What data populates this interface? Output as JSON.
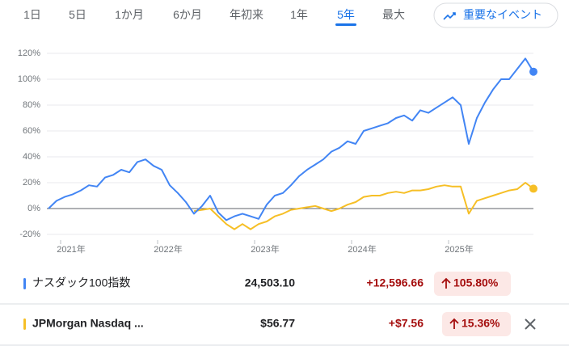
{
  "tabs": [
    "1日",
    "5日",
    "1か月",
    "6か月",
    "年初来",
    "1年",
    "5年",
    "最大"
  ],
  "selected_tab": 6,
  "events_button": "重要なイベント",
  "chart_data": {
    "type": "line",
    "x": [
      2020.875,
      2020.958,
      2021.042,
      2021.125,
      2021.208,
      2021.292,
      2021.375,
      2021.458,
      2021.542,
      2021.625,
      2021.708,
      2021.792,
      2021.875,
      2021.958,
      2022.042,
      2022.125,
      2022.208,
      2022.292,
      2022.375,
      2022.458,
      2022.542,
      2022.625,
      2022.708,
      2022.792,
      2022.875,
      2022.958,
      2023.042,
      2023.125,
      2023.208,
      2023.292,
      2023.375,
      2023.458,
      2023.542,
      2023.625,
      2023.708,
      2023.792,
      2023.875,
      2023.958,
      2024.042,
      2024.125,
      2024.208,
      2024.292,
      2024.375,
      2024.458,
      2024.542,
      2024.625,
      2024.708,
      2024.792,
      2024.875,
      2024.958,
      2025.042,
      2025.125,
      2025.208,
      2025.292,
      2025.375,
      2025.458,
      2025.542,
      2025.625,
      2025.708,
      2025.792,
      2025.875
    ],
    "series": [
      {
        "name": "ナスダック100指数",
        "color": "#4285f4",
        "price_label": "24,503.10",
        "change_label": "+12,596.66",
        "change_percent_label": "105.80%",
        "values": [
          0,
          6,
          9,
          11,
          14,
          18,
          17,
          24,
          26,
          30,
          28,
          36,
          38,
          33,
          30,
          18,
          12,
          5,
          -4,
          2,
          10,
          -3,
          -9,
          -6,
          -4,
          -6,
          -8,
          3,
          10,
          12,
          18,
          25,
          30,
          34,
          38,
          44,
          47,
          52,
          50,
          60,
          62,
          64,
          66,
          70,
          72,
          68,
          76,
          74,
          78,
          82,
          86,
          80,
          50,
          70,
          82,
          92,
          100,
          100,
          108,
          116,
          105.8
        ]
      },
      {
        "name": "JPMorgan Nasdaq ...",
        "color": "#f6bf26",
        "price_label": "$56.77",
        "change_label": "+$7.56",
        "change_percent_label": "15.36%",
        "values": [
          null,
          null,
          null,
          null,
          null,
          null,
          null,
          null,
          null,
          null,
          null,
          null,
          null,
          null,
          null,
          null,
          null,
          null,
          -2,
          -1,
          0,
          -6,
          -12,
          -16,
          -12,
          -16,
          -12,
          -10,
          -6,
          -4,
          -1,
          0,
          1,
          2,
          0,
          -2,
          0,
          3,
          5,
          9,
          10,
          10,
          12,
          13,
          12,
          14,
          14,
          15,
          17,
          18,
          17,
          17,
          -4,
          6,
          8,
          10,
          12,
          14,
          15,
          20,
          15.36
        ]
      }
    ],
    "xlim": [
      2020.875,
      2025.875
    ],
    "xticks": [
      {
        "value": 2021,
        "label": "2021年"
      },
      {
        "value": 2022,
        "label": "2022年"
      },
      {
        "value": 2023,
        "label": "2023年"
      },
      {
        "value": 2024,
        "label": "2024年"
      },
      {
        "value": 2025,
        "label": "2025年"
      }
    ],
    "ylim": [
      -20,
      120
    ],
    "yticks": [
      {
        "value": -20,
        "label": "-20%"
      },
      {
        "value": 0,
        "label": "0%"
      },
      {
        "value": 20,
        "label": "20%"
      },
      {
        "value": 40,
        "label": "40%"
      },
      {
        "value": 60,
        "label": "60%"
      },
      {
        "value": 80,
        "label": "80%"
      },
      {
        "value": 100,
        "label": "100%"
      },
      {
        "value": 120,
        "label": "120%"
      }
    ],
    "grid": true
  }
}
